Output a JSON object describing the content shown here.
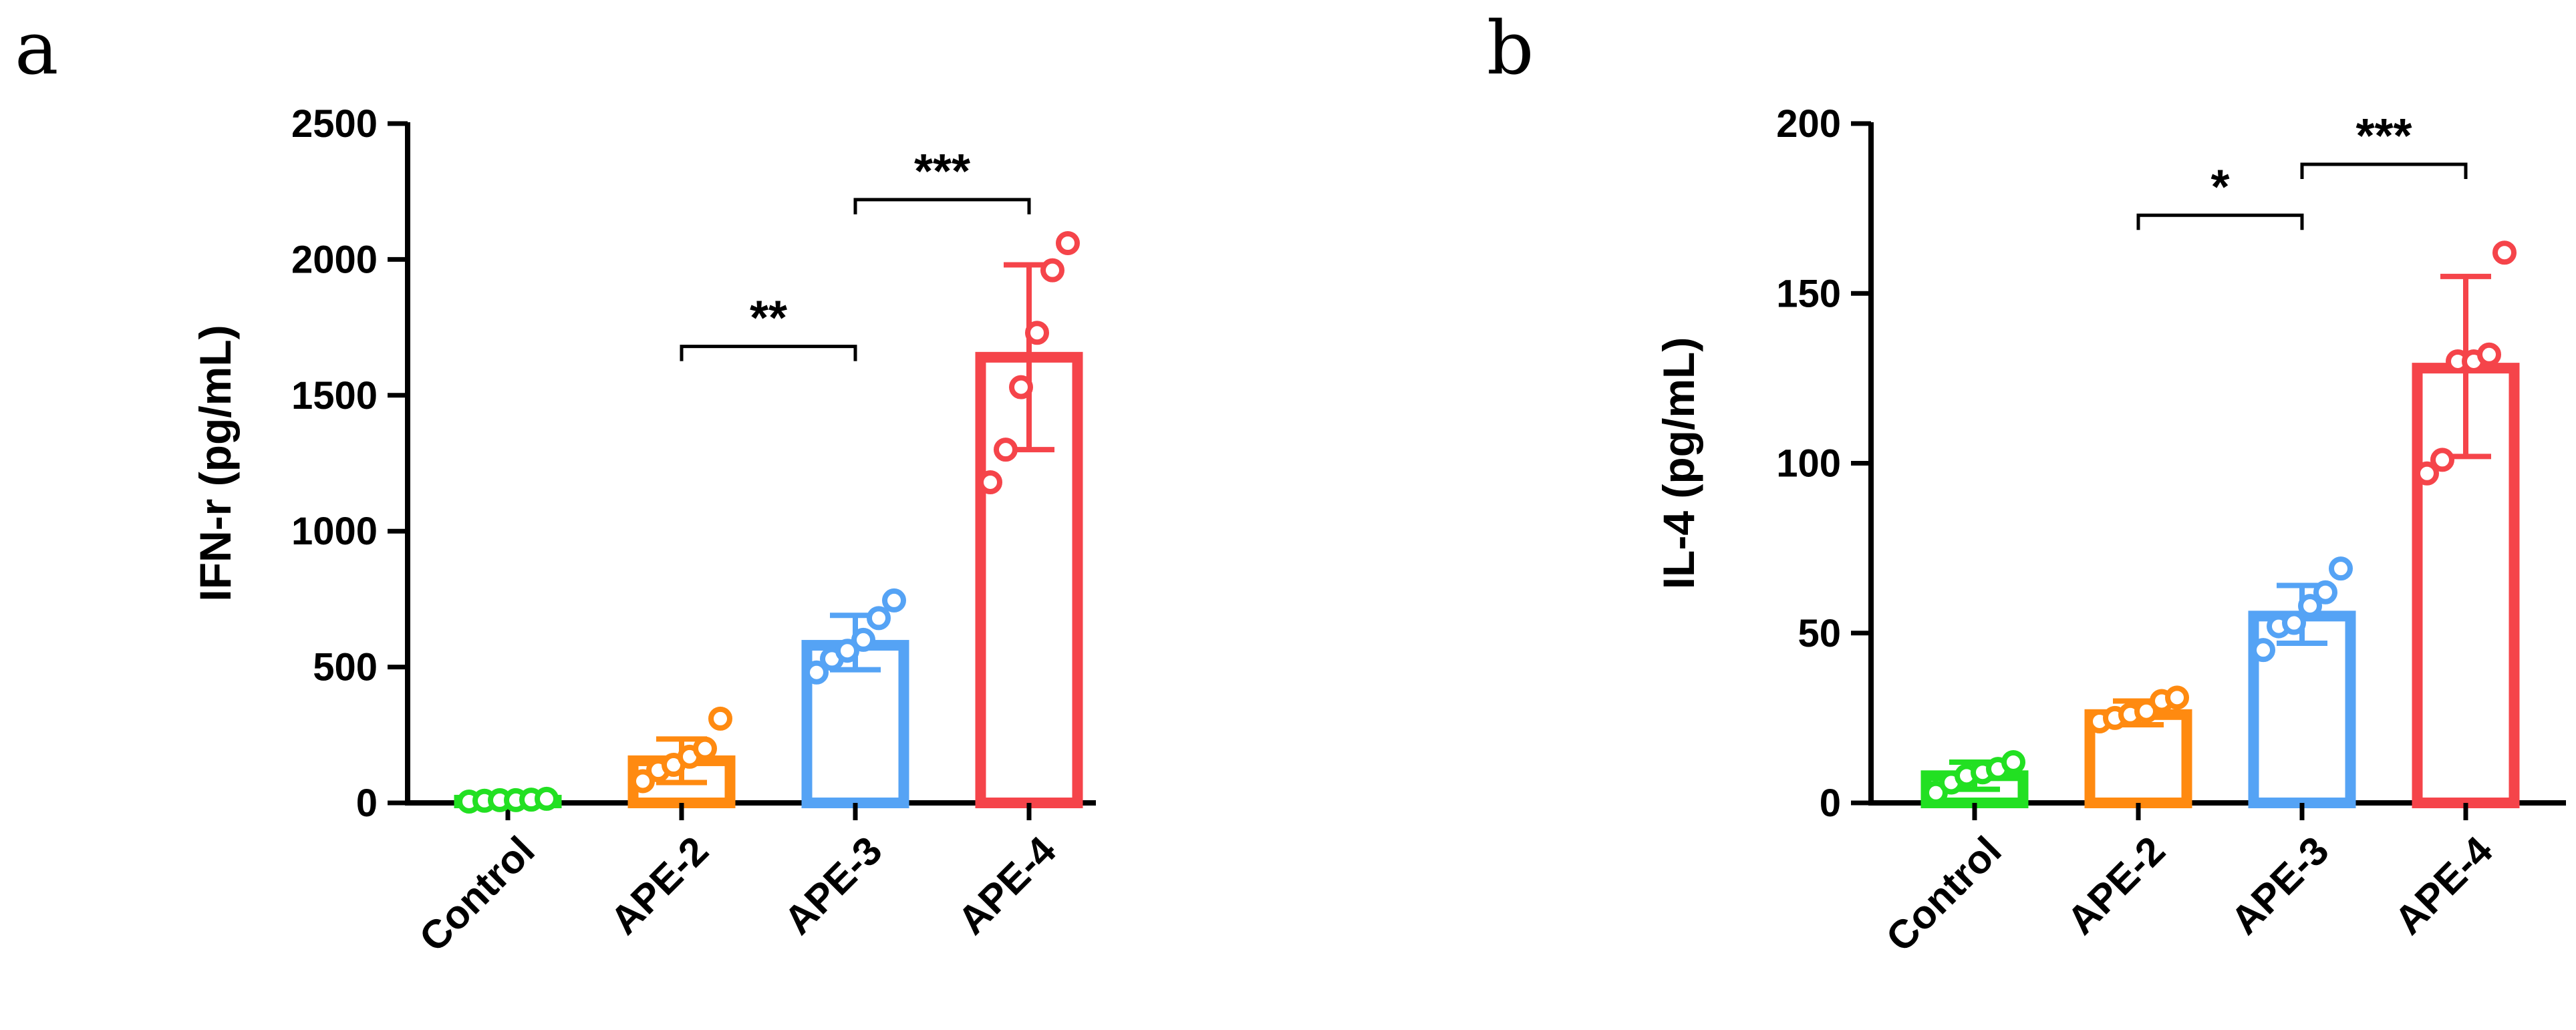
{
  "chart_data": [
    {
      "type": "bar",
      "panel": "a",
      "categories": [
        "Control",
        "APE-2",
        "APE-3",
        "APE-4"
      ],
      "ylabel": "IFN-r (pg/mL)",
      "ylim": [
        0,
        2500
      ],
      "yticks": [
        0,
        500,
        1000,
        1500,
        2000,
        2500
      ],
      "colors": [
        "#22e022",
        "#ff8a10",
        "#55a3f5",
        "#f5444a"
      ],
      "means": [
        10,
        155,
        580,
        1640
      ],
      "sd_low": [
        0,
        75,
        490,
        1300
      ],
      "sd_high": [
        25,
        235,
        690,
        1980
      ],
      "points": [
        [
          5,
          8,
          10,
          10,
          12,
          15
        ],
        [
          80,
          120,
          140,
          170,
          200,
          310
        ],
        [
          480,
          530,
          560,
          600,
          680,
          745
        ],
        [
          1180,
          1300,
          1530,
          1730,
          1960,
          2060
        ]
      ],
      "significance": [
        {
          "from": 1,
          "to": 2,
          "y": 1680,
          "label": "**"
        },
        {
          "from": 2,
          "to": 3,
          "y": 2220,
          "label": "***"
        }
      ]
    },
    {
      "type": "bar",
      "panel": "b",
      "categories": [
        "Control",
        "APE-2",
        "APE-3",
        "APE-4"
      ],
      "ylabel": "IL-4 (pg/mL)",
      "ylim": [
        0,
        200
      ],
      "yticks": [
        0,
        50,
        100,
        150,
        200
      ],
      "colors": [
        "#22e022",
        "#ff8a10",
        "#55a3f5",
        "#f5444a"
      ],
      "means": [
        8,
        26,
        55,
        128
      ],
      "sd_low": [
        4,
        23,
        47,
        102
      ],
      "sd_high": [
        12,
        30,
        64,
        155
      ],
      "points": [
        [
          3,
          6,
          8,
          9,
          10,
          12
        ],
        [
          24,
          25,
          26,
          27,
          30,
          31
        ],
        [
          45,
          52,
          53,
          58,
          62,
          69
        ],
        [
          97,
          101,
          130,
          130,
          132,
          162
        ]
      ],
      "significance": [
        {
          "from": 1,
          "to": 2,
          "y": 173,
          "label": "*"
        },
        {
          "from": 2,
          "to": 3,
          "y": 188,
          "label": "***"
        }
      ]
    }
  ]
}
